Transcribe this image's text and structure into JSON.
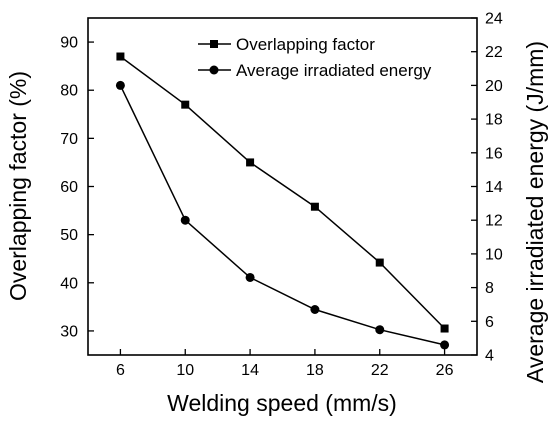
{
  "chart_data": {
    "type": "line",
    "x": [
      6,
      10,
      14,
      18,
      22,
      26
    ],
    "xlabel": "Welding speed (mm/s)",
    "xticks": [
      6,
      10,
      14,
      18,
      22,
      26
    ],
    "ylabel_left": "Overlapping factor (%)",
    "ylabel_right": "Average irradiated energy (J/mm)",
    "ylim_left": [
      25,
      95
    ],
    "ylim_right": [
      4,
      24
    ],
    "yticks_left": [
      30,
      40,
      50,
      60,
      70,
      80,
      90
    ],
    "yticks_right": [
      4,
      6,
      8,
      10,
      12,
      14,
      16,
      18,
      20,
      22,
      24
    ],
    "grid": false,
    "legend_position": "top-right",
    "series": [
      {
        "name": "Overlapping factor",
        "axis": "left",
        "marker": "square",
        "values": [
          87,
          77,
          65,
          55.8,
          44.2,
          30.5
        ]
      },
      {
        "name": "Average irradiated energy",
        "axis": "right",
        "marker": "circle",
        "values": [
          20,
          12,
          8.6,
          6.7,
          5.5,
          4.6
        ]
      }
    ]
  }
}
